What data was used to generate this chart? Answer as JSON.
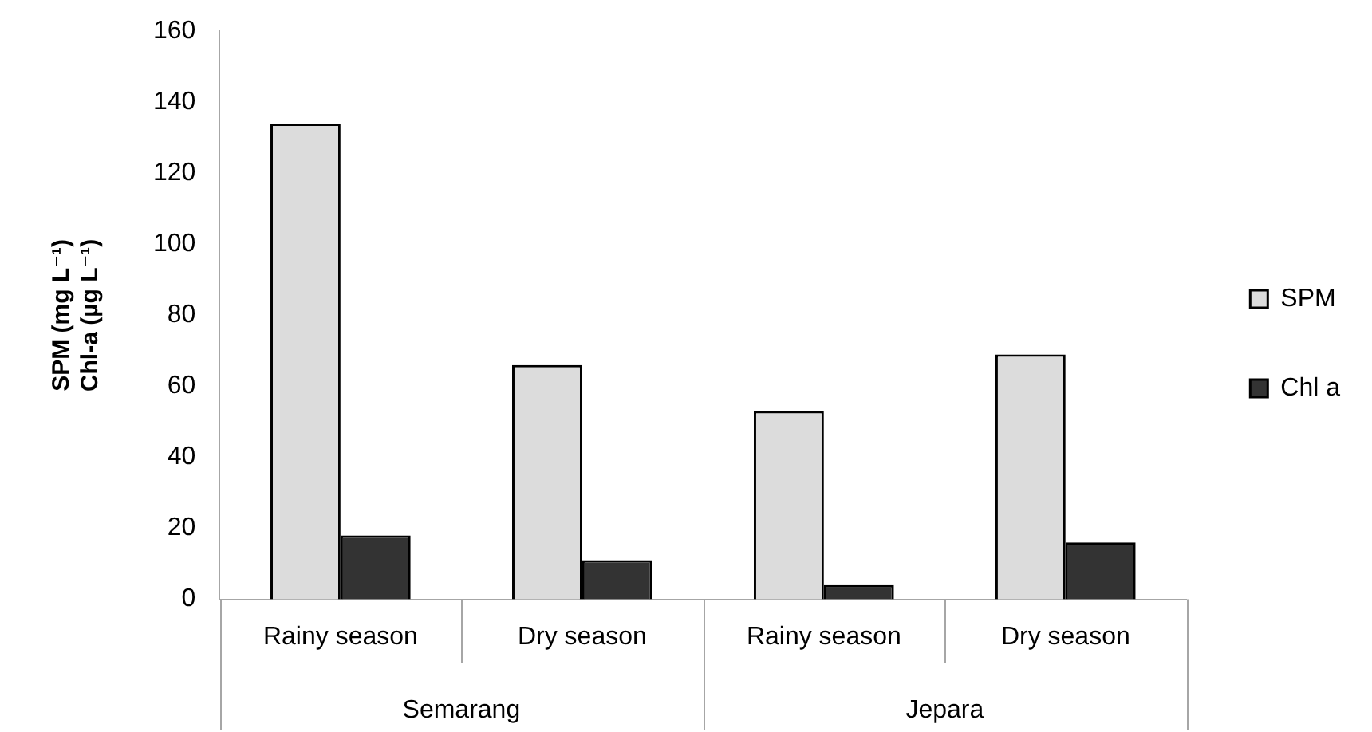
{
  "chart_data": {
    "type": "bar",
    "ylabel": "SPM (mg L⁻¹)\nChl-a (µg L⁻¹)",
    "categories": [
      "Rainy season",
      "Dry season",
      "Rainy season",
      "Dry season"
    ],
    "series": [
      {
        "name": "SPM",
        "color": "#dcdcdc",
        "values": [
          134,
          66,
          53,
          69
        ]
      },
      {
        "name": "Chl a",
        "color": "#333333",
        "values": [
          18,
          11,
          4,
          16
        ]
      }
    ],
    "annotations": [
      "Semarang",
      "Jepara"
    ],
    "ylim": [
      0,
      160
    ],
    "yticks": [
      0,
      20,
      40,
      60,
      80,
      100,
      120,
      140,
      160
    ],
    "grid": false,
    "legend": "right"
  }
}
